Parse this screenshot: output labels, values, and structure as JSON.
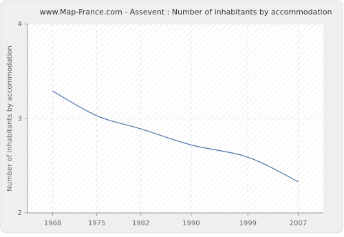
{
  "chart_data": {
    "type": "line",
    "title": "www.Map-France.com - Assevent : Number of inhabitants by accommodation",
    "y_label": "Number of inhabitants by accommodation",
    "x": [
      1968,
      1975,
      1982,
      1990,
      1999,
      2007
    ],
    "series": [
      {
        "name": "Assevent",
        "color": "#4a74a8",
        "values": [
          3.29,
          3.03,
          2.89,
          2.72,
          2.59,
          2.33
        ]
      }
    ],
    "xlim": [
      1964,
      2011
    ],
    "xticks": [
      1968,
      1975,
      1982,
      1990,
      1999,
      2007
    ],
    "ylim": [
      2,
      4
    ],
    "yticks": [
      2,
      3,
      4
    ],
    "grid": true
  }
}
